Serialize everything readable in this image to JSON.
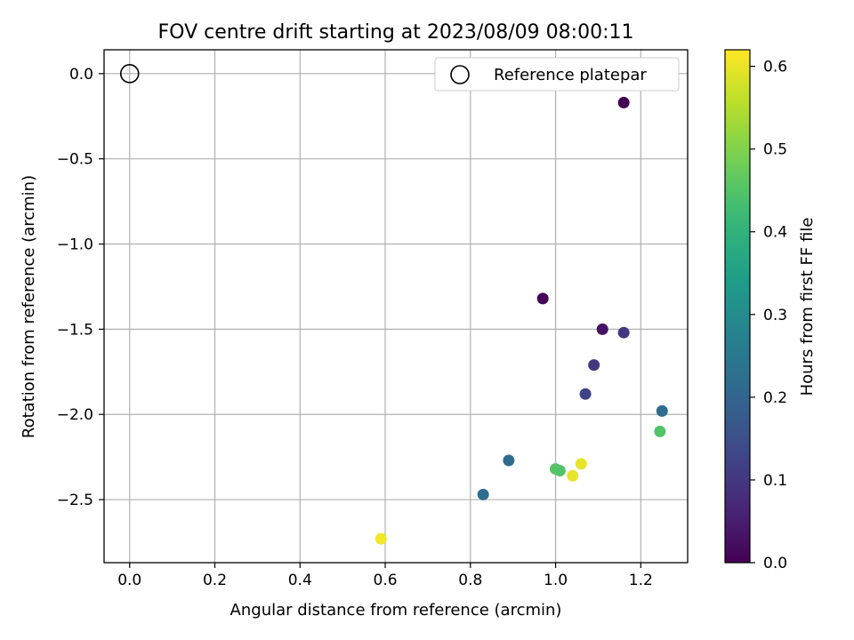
{
  "chart_data": {
    "type": "scatter",
    "title": "FOV centre drift starting at 2023/08/09 08:00:11",
    "xlabel": "Angular distance from reference (arcmin)",
    "ylabel": "Rotation from reference (arcmin)",
    "xlim": [
      -0.06,
      1.31
    ],
    "ylim": [
      -2.87,
      0.14
    ],
    "xticks": [
      0.0,
      0.2,
      0.4,
      0.6,
      0.8,
      1.0,
      1.2
    ],
    "yticks": [
      0.0,
      -0.5,
      -1.0,
      -1.5,
      -2.0,
      -2.5
    ],
    "xtick_labels": [
      "0.0",
      "0.2",
      "0.4",
      "0.6",
      "0.8",
      "1.0",
      "1.2"
    ],
    "ytick_labels": [
      "0.0",
      "−0.5",
      "−1.0",
      "−1.5",
      "−2.0",
      "−2.5"
    ],
    "grid": true,
    "legend": {
      "position": "top-right",
      "entries": [
        "Reference platepar"
      ]
    },
    "reference_point": {
      "x": 0.0,
      "y": 0.0
    },
    "colorbar": {
      "label": "Hours from first FF file",
      "colormap": "viridis",
      "range": [
        0.0,
        0.62
      ],
      "ticks": [
        0.0,
        0.1,
        0.2,
        0.3,
        0.4,
        0.5,
        0.6
      ],
      "tick_labels": [
        "0.0",
        "0.1",
        "0.2",
        "0.3",
        "0.4",
        "0.5",
        "0.6"
      ]
    },
    "points": [
      {
        "x": 1.16,
        "y": -0.17,
        "hours": 0.0
      },
      {
        "x": 0.97,
        "y": -1.32,
        "hours": 0.01
      },
      {
        "x": 1.11,
        "y": -1.5,
        "hours": 0.03
      },
      {
        "x": 1.16,
        "y": -1.52,
        "hours": 0.1
      },
      {
        "x": 1.09,
        "y": -1.71,
        "hours": 0.1
      },
      {
        "x": 1.07,
        "y": -1.88,
        "hours": 0.12
      },
      {
        "x": 1.25,
        "y": -1.98,
        "hours": 0.22
      },
      {
        "x": 0.89,
        "y": -2.27,
        "hours": 0.22
      },
      {
        "x": 0.83,
        "y": -2.47,
        "hours": 0.22
      },
      {
        "x": 1.245,
        "y": -2.1,
        "hours": 0.45
      },
      {
        "x": 1.0,
        "y": -2.32,
        "hours": 0.45
      },
      {
        "x": 1.01,
        "y": -2.33,
        "hours": 0.45
      },
      {
        "x": 1.06,
        "y": -2.29,
        "hours": 0.6
      },
      {
        "x": 1.04,
        "y": -2.36,
        "hours": 0.6
      },
      {
        "x": 0.59,
        "y": -2.73,
        "hours": 0.61
      }
    ]
  }
}
